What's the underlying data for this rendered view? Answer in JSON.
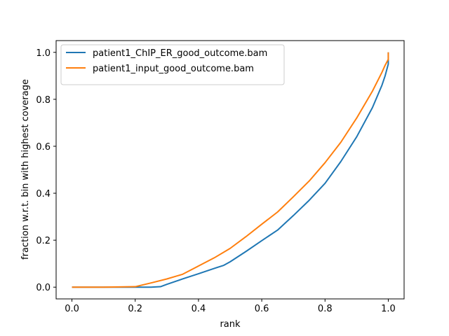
{
  "chart_data": {
    "type": "line",
    "title": "",
    "xlabel": "rank",
    "ylabel": "fraction w.r.t. bin with highest coverage",
    "xlim": [
      -0.05,
      1.05
    ],
    "ylim": [
      -0.05,
      1.05
    ],
    "xticks": [
      "0.0",
      "0.2",
      "0.4",
      "0.6",
      "0.8",
      "1.0"
    ],
    "yticks": [
      "0.0",
      "0.2",
      "0.4",
      "0.6",
      "0.8",
      "1.0"
    ],
    "grid": false,
    "legend_position": "top-left",
    "series": [
      {
        "name": "patient1_ChIP_ER_good_outcome.bam",
        "color": "#1f77b4",
        "x": [
          0.0,
          0.1,
          0.2,
          0.25,
          0.28,
          0.3,
          0.35,
          0.4,
          0.45,
          0.48,
          0.5,
          0.55,
          0.6,
          0.65,
          0.7,
          0.75,
          0.8,
          0.85,
          0.9,
          0.95,
          0.98,
          0.99,
          1.0,
          1.0
        ],
        "y": [
          0.0,
          0.0,
          0.0,
          0.0,
          0.002,
          0.012,
          0.035,
          0.057,
          0.08,
          0.093,
          0.108,
          0.152,
          0.198,
          0.243,
          0.305,
          0.37,
          0.442,
          0.535,
          0.64,
          0.765,
          0.86,
          0.9,
          0.95,
          1.0
        ]
      },
      {
        "name": "patient1_input_good_outcome.bam",
        "color": "#ff7f0e",
        "x": [
          0.0,
          0.1,
          0.2,
          0.25,
          0.3,
          0.35,
          0.4,
          0.45,
          0.5,
          0.55,
          0.6,
          0.65,
          0.7,
          0.75,
          0.8,
          0.85,
          0.9,
          0.95,
          0.98,
          0.99,
          1.0,
          1.0
        ],
        "y": [
          0.0,
          0.0,
          0.002,
          0.018,
          0.035,
          0.055,
          0.09,
          0.125,
          0.165,
          0.215,
          0.268,
          0.32,
          0.385,
          0.452,
          0.53,
          0.617,
          0.72,
          0.835,
          0.915,
          0.945,
          0.97,
          1.0
        ]
      }
    ]
  }
}
